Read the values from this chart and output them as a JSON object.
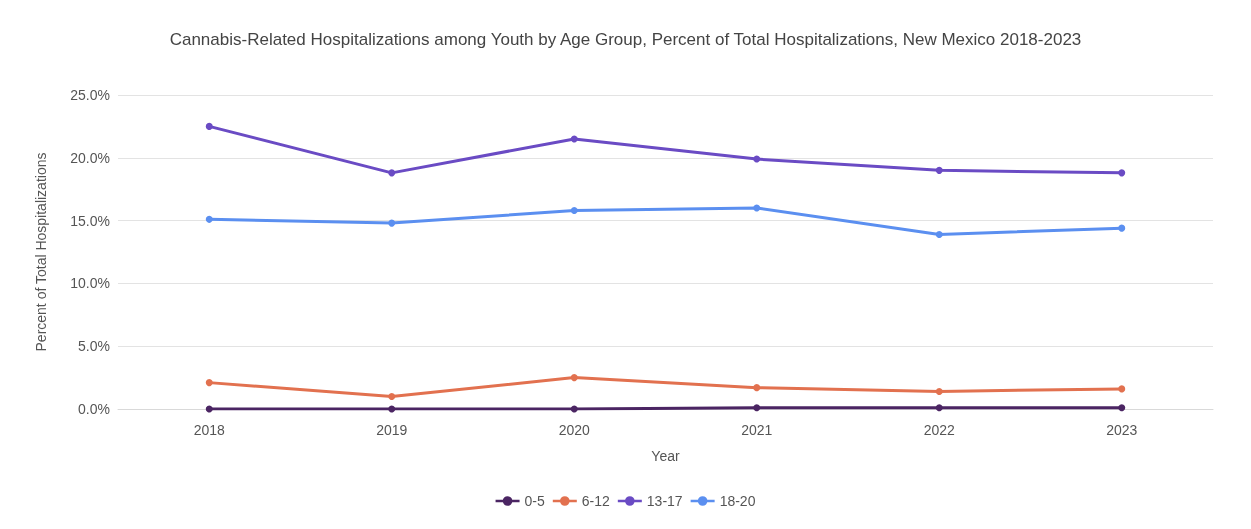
{
  "chart_data": {
    "type": "line",
    "title": "Cannabis-Related Hospitalizations among Youth by Age Group, Percent of Total Hospitalizations, New Mexico 2018-2023",
    "xlabel": "Year",
    "ylabel": "Percent of Total Hospitalizations",
    "categories": [
      "2018",
      "2019",
      "2020",
      "2021",
      "2022",
      "2023"
    ],
    "series": [
      {
        "name": "0-5",
        "color": "#4b2563",
        "values": [
          0,
          0,
          0,
          0.1,
          0.1,
          0.1
        ]
      },
      {
        "name": "6-12",
        "color": "#e2714f",
        "values": [
          2.1,
          1.0,
          2.5,
          1.7,
          1.4,
          1.6
        ]
      },
      {
        "name": "13-17",
        "color": "#6a4bc4",
        "values": [
          22.5,
          18.8,
          21.5,
          19.9,
          19.0,
          18.8
        ]
      },
      {
        "name": "18-20",
        "color": "#5b8ff0",
        "values": [
          15.1,
          14.8,
          15.8,
          16.0,
          13.9,
          14.4
        ]
      }
    ],
    "ylim": [
      0,
      25
    ],
    "yticks": [
      {
        "value": 0,
        "label": "0.0%"
      },
      {
        "value": 5,
        "label": "5.0%"
      },
      {
        "value": 10,
        "label": "10.0%"
      },
      {
        "value": 15,
        "label": "15.0%"
      },
      {
        "value": 20,
        "label": "20.0%"
      },
      {
        "value": 25,
        "label": "25.0%"
      }
    ],
    "grid": "y",
    "legend": "bottom",
    "marker": "circle",
    "line_style": "solid"
  }
}
